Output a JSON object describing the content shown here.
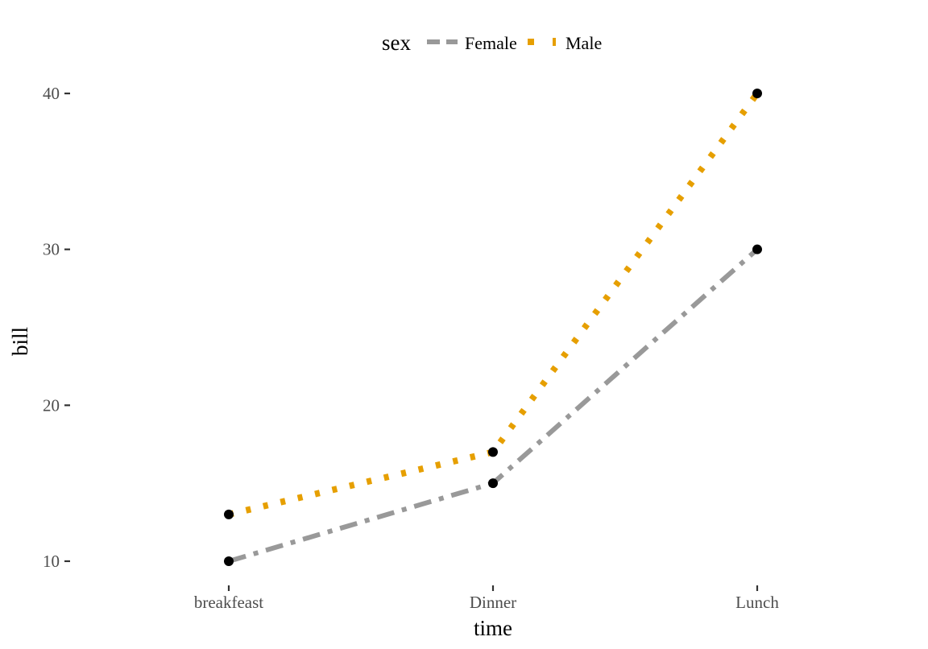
{
  "chart_data": {
    "type": "line",
    "categories": [
      "breakfeast",
      "Dinner",
      "Lunch"
    ],
    "series": [
      {
        "name": "Female",
        "values": [
          10,
          15,
          30
        ],
        "color": "#999999",
        "linetype": "dashdot"
      },
      {
        "name": "Male",
        "values": [
          13,
          17,
          40
        ],
        "color": "#E69F00",
        "linetype": "dotted"
      }
    ],
    "point_color": "#000000",
    "xlabel": "time",
    "ylabel": "bill",
    "yticks": [
      10,
      20,
      30,
      40
    ],
    "ylim": [
      8.5,
      41.5
    ],
    "legend": {
      "title": "sex",
      "position": "top"
    },
    "grid": false
  }
}
